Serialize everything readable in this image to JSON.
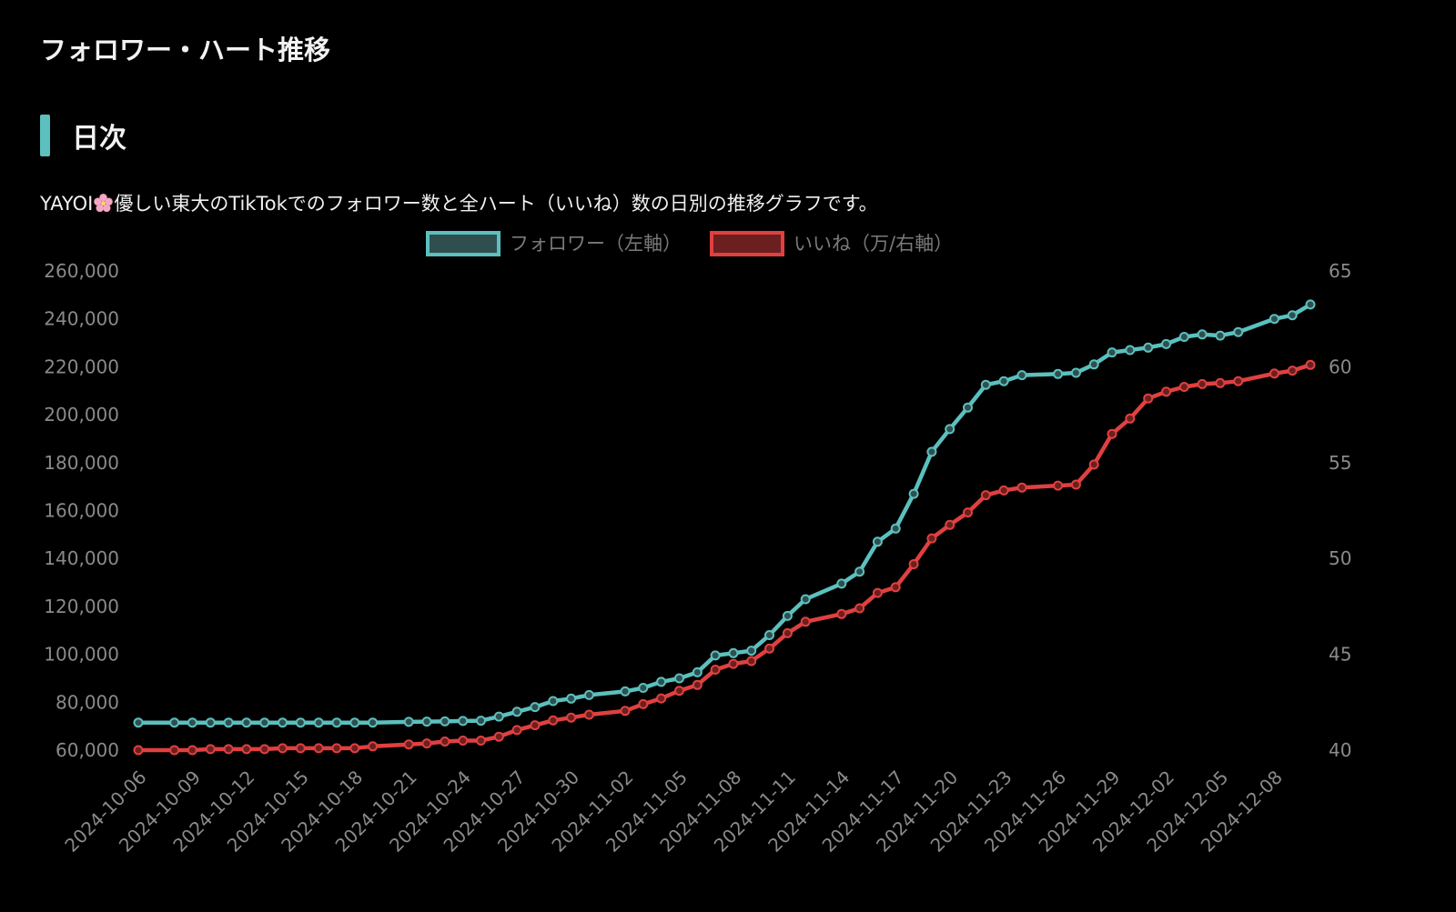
{
  "page": {
    "title": "フォロワー・ハート推移",
    "section_title": "日次",
    "description_before": "YAYOI",
    "description_after": "優しい東大のTikTokでのフォロワー数と全ハート（いいね）数の日別の推移グラフです。",
    "accent_color": "#5bc0be"
  },
  "chart_data": {
    "type": "line",
    "legend": {
      "position": "top"
    },
    "y_left": {
      "min": 60000,
      "max": 260000,
      "ticks": [
        "260,000",
        "240,000",
        "220,000",
        "200,000",
        "180,000",
        "160,000",
        "140,000",
        "120,000",
        "100,000",
        "80,000",
        "60,000"
      ]
    },
    "y_right": {
      "min": 40,
      "max": 65,
      "ticks": [
        "65",
        "60",
        "55",
        "50",
        "45",
        "40"
      ]
    },
    "x": {
      "start": "2024-10-06",
      "end": "2024-12-10",
      "labels": [
        "2024-10-06",
        "2024-10-09",
        "2024-10-12",
        "2024-10-15",
        "2024-10-18",
        "2024-10-21",
        "2024-10-24",
        "2024-10-27",
        "2024-10-30",
        "2024-11-02",
        "2024-11-05",
        "2024-11-08",
        "2024-11-11",
        "2024-11-14",
        "2024-11-17",
        "2024-11-20",
        "2024-11-23",
        "2024-11-26",
        "2024-11-29",
        "2024-12-02",
        "2024-12-05",
        "2024-12-08"
      ]
    },
    "series": [
      {
        "name": "フォロワー（左軸）",
        "axis": "left",
        "color": "#5bc0be",
        "fill": "#2f4f4f",
        "points": [
          [
            "2024-10-06",
            71500
          ],
          [
            "2024-10-08",
            71500
          ],
          [
            "2024-10-09",
            71500
          ],
          [
            "2024-10-10",
            71500
          ],
          [
            "2024-10-11",
            71500
          ],
          [
            "2024-10-12",
            71500
          ],
          [
            "2024-10-13",
            71500
          ],
          [
            "2024-10-14",
            71500
          ],
          [
            "2024-10-15",
            71500
          ],
          [
            "2024-10-16",
            71500
          ],
          [
            "2024-10-17",
            71500
          ],
          [
            "2024-10-18",
            71500
          ],
          [
            "2024-10-19",
            71500
          ],
          [
            "2024-10-21",
            71800
          ],
          [
            "2024-10-22",
            71900
          ],
          [
            "2024-10-23",
            72000
          ],
          [
            "2024-10-24",
            72200
          ],
          [
            "2024-10-25",
            72300
          ],
          [
            "2024-10-26",
            74000
          ],
          [
            "2024-10-27",
            76000
          ],
          [
            "2024-10-28",
            78000
          ],
          [
            "2024-10-29",
            80500
          ],
          [
            "2024-10-30",
            81500
          ],
          [
            "2024-10-31",
            83000
          ],
          [
            "2024-11-02",
            84500
          ],
          [
            "2024-11-03",
            86000
          ],
          [
            "2024-11-04",
            88500
          ],
          [
            "2024-11-05",
            90000
          ],
          [
            "2024-11-06",
            92500
          ],
          [
            "2024-11-07",
            99500
          ],
          [
            "2024-11-08",
            100500
          ],
          [
            "2024-11-09",
            101500
          ],
          [
            "2024-11-10",
            108000
          ],
          [
            "2024-11-11",
            116000
          ],
          [
            "2024-11-12",
            123000
          ],
          [
            "2024-11-14",
            129500
          ],
          [
            "2024-11-15",
            134500
          ],
          [
            "2024-11-16",
            147000
          ],
          [
            "2024-11-17",
            152500
          ],
          [
            "2024-11-18",
            167000
          ],
          [
            "2024-11-19",
            184500
          ],
          [
            "2024-11-20",
            194000
          ],
          [
            "2024-11-21",
            203000
          ],
          [
            "2024-11-22",
            212500
          ],
          [
            "2024-11-23",
            214000
          ],
          [
            "2024-11-24",
            216500
          ],
          [
            "2024-11-26",
            217000
          ],
          [
            "2024-11-27",
            217500
          ],
          [
            "2024-11-28",
            221000
          ],
          [
            "2024-11-29",
            226000
          ],
          [
            "2024-11-30",
            227000
          ],
          [
            "2024-12-01",
            228000
          ],
          [
            "2024-12-02",
            229500
          ],
          [
            "2024-12-03",
            232500
          ],
          [
            "2024-12-04",
            233500
          ],
          [
            "2024-12-05",
            233000
          ],
          [
            "2024-12-06",
            234500
          ],
          [
            "2024-12-08",
            240000
          ],
          [
            "2024-12-09",
            241500
          ],
          [
            "2024-12-10",
            246000
          ]
        ]
      },
      {
        "name": "いいね（万/右軸）",
        "axis": "right",
        "color": "#e04040",
        "fill": "#6b1f1f",
        "points": [
          [
            "2024-10-06",
            40.0
          ],
          [
            "2024-10-08",
            40.0
          ],
          [
            "2024-10-09",
            40.0
          ],
          [
            "2024-10-10",
            40.05
          ],
          [
            "2024-10-11",
            40.05
          ],
          [
            "2024-10-12",
            40.05
          ],
          [
            "2024-10-13",
            40.05
          ],
          [
            "2024-10-14",
            40.1
          ],
          [
            "2024-10-15",
            40.1
          ],
          [
            "2024-10-16",
            40.1
          ],
          [
            "2024-10-17",
            40.1
          ],
          [
            "2024-10-18",
            40.1
          ],
          [
            "2024-10-19",
            40.2
          ],
          [
            "2024-10-21",
            40.3
          ],
          [
            "2024-10-22",
            40.35
          ],
          [
            "2024-10-23",
            40.45
          ],
          [
            "2024-10-24",
            40.5
          ],
          [
            "2024-10-25",
            40.5
          ],
          [
            "2024-10-26",
            40.7
          ],
          [
            "2024-10-27",
            41.05
          ],
          [
            "2024-10-28",
            41.3
          ],
          [
            "2024-10-29",
            41.55
          ],
          [
            "2024-10-30",
            41.7
          ],
          [
            "2024-10-31",
            41.85
          ],
          [
            "2024-11-02",
            42.05
          ],
          [
            "2024-11-03",
            42.4
          ],
          [
            "2024-11-04",
            42.7
          ],
          [
            "2024-11-05",
            43.1
          ],
          [
            "2024-11-06",
            43.4
          ],
          [
            "2024-11-07",
            44.2
          ],
          [
            "2024-11-08",
            44.5
          ],
          [
            "2024-11-09",
            44.65
          ],
          [
            "2024-11-10",
            45.3
          ],
          [
            "2024-11-11",
            46.1
          ],
          [
            "2024-11-12",
            46.7
          ],
          [
            "2024-11-14",
            47.1
          ],
          [
            "2024-11-15",
            47.4
          ],
          [
            "2024-11-16",
            48.2
          ],
          [
            "2024-11-17",
            48.5
          ],
          [
            "2024-11-18",
            49.7
          ],
          [
            "2024-11-19",
            51.05
          ],
          [
            "2024-11-20",
            51.75
          ],
          [
            "2024-11-21",
            52.4
          ],
          [
            "2024-11-22",
            53.3
          ],
          [
            "2024-11-23",
            53.55
          ],
          [
            "2024-11-24",
            53.7
          ],
          [
            "2024-11-26",
            53.8
          ],
          [
            "2024-11-27",
            53.85
          ],
          [
            "2024-11-28",
            54.9
          ],
          [
            "2024-11-29",
            56.5
          ],
          [
            "2024-11-30",
            57.3
          ],
          [
            "2024-12-01",
            58.35
          ],
          [
            "2024-12-02",
            58.7
          ],
          [
            "2024-12-03",
            58.95
          ],
          [
            "2024-12-04",
            59.1
          ],
          [
            "2024-12-05",
            59.15
          ],
          [
            "2024-12-06",
            59.25
          ],
          [
            "2024-12-08",
            59.65
          ],
          [
            "2024-12-09",
            59.8
          ],
          [
            "2024-12-10",
            60.1
          ]
        ]
      }
    ]
  }
}
